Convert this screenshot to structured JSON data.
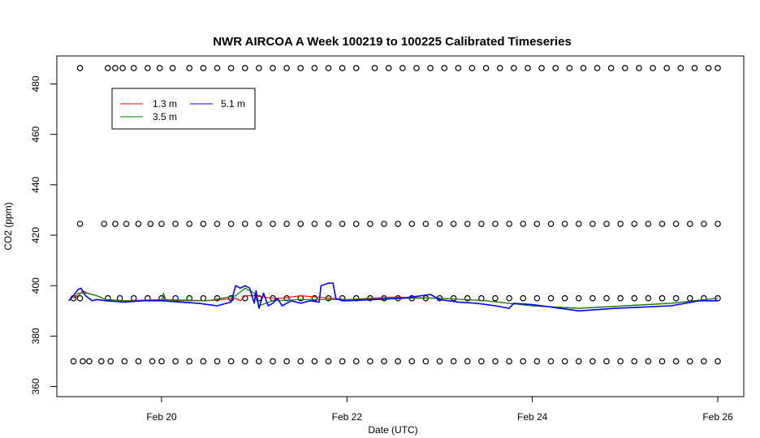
{
  "chart_data": {
    "type": "line",
    "title": "NWR AIRCOA A  Week 100219 to 100225  Calibrated Timeseries",
    "xlabel": "Date (UTC)",
    "ylabel": "CO2 (ppm)",
    "xlim": [
      19.0,
      26.0
    ],
    "ylim": [
      355,
      490
    ],
    "x_ticks": [
      20,
      22,
      24,
      26
    ],
    "x_tick_labels": [
      "Feb 20",
      "Feb 22",
      "Feb 24",
      "Feb 26"
    ],
    "y_ticks": [
      360,
      380,
      400,
      420,
      440,
      460,
      480
    ],
    "y_tick_labels": [
      "360",
      "380",
      "400",
      "420",
      "440",
      "460",
      "480"
    ],
    "grid": false,
    "legend": {
      "position": "top-left",
      "columns": 2
    },
    "series": [
      {
        "name": "1.3 m",
        "color": "#ff0000",
        "x": [
          19.05,
          19.1,
          19.15,
          19.2,
          19.3,
          19.4,
          19.6,
          20.0,
          20.5,
          20.8,
          20.85,
          20.9,
          21.0,
          21.2,
          21.3,
          21.5,
          22.0,
          22.5,
          23.0,
          23.5,
          24.0,
          24.5,
          25.0,
          25.5,
          26.0
        ],
        "values": [
          395,
          396,
          398,
          397,
          396,
          394.5,
          394,
          394.5,
          394,
          395,
          394,
          396,
          396,
          395,
          395,
          396,
          394.5,
          395.5,
          395,
          394,
          392,
          391,
          392,
          393,
          395
        ]
      },
      {
        "name": "3.5 m",
        "color": "#008000",
        "x": [
          19.05,
          19.1,
          19.2,
          19.3,
          19.4,
          19.6,
          20.0,
          20.02,
          20.05,
          20.5,
          20.8,
          20.9,
          21.0,
          21.05,
          21.2,
          21.5,
          22.0,
          22.5,
          23.0,
          23.5,
          24.0,
          24.5,
          25.0,
          25.5,
          26.0
        ],
        "values": [
          395,
          397,
          397,
          396,
          394.5,
          394,
          394,
          397,
          394,
          394,
          396,
          399,
          397,
          392,
          394,
          394.5,
          394.5,
          395,
          395,
          394,
          392,
          391,
          392,
          393,
          395
        ]
      },
      {
        "name": "5.1 m",
        "color": "#0000ff",
        "x": [
          19.0,
          19.05,
          19.1,
          19.13,
          19.18,
          19.25,
          19.3,
          19.4,
          19.6,
          19.8,
          20.0,
          20.2,
          20.4,
          20.6,
          20.75,
          20.8,
          20.85,
          20.9,
          20.95,
          21.0,
          21.02,
          21.05,
          21.1,
          21.15,
          21.2,
          21.25,
          21.3,
          21.4,
          21.5,
          21.6,
          21.7,
          21.72,
          21.8,
          21.85,
          21.88,
          21.95,
          22.0,
          22.3,
          22.6,
          22.9,
          23.0,
          23.2,
          23.4,
          23.6,
          23.75,
          23.8,
          24.0,
          24.2,
          24.4,
          24.5,
          24.7,
          24.9,
          25.2,
          25.5,
          25.8,
          26.0
        ],
        "values": [
          394,
          396,
          398.5,
          399,
          396,
          394,
          394.5,
          394,
          393.5,
          394,
          394,
          393.5,
          393,
          392,
          393.5,
          400,
          399,
          400,
          399,
          393,
          398,
          391,
          397,
          392,
          393,
          395,
          392,
          394,
          393,
          394,
          393.5,
          400,
          401,
          401,
          395,
          394,
          394,
          394.5,
          395,
          396.5,
          394.5,
          393.5,
          393,
          392,
          391,
          393,
          392.5,
          391.5,
          390.5,
          390,
          390.5,
          391,
          391.5,
          392,
          394,
          394
        ]
      }
    ],
    "point_series": [
      {
        "y": 486.3,
        "x": [
          19.12,
          19.42,
          19.5,
          19.58,
          19.7,
          19.85,
          19.98,
          20.12,
          20.3,
          20.45,
          20.6,
          20.75,
          20.9,
          21.05,
          21.2,
          21.35,
          21.5,
          21.65,
          21.8,
          21.95,
          22.1,
          22.3,
          22.45,
          22.6,
          22.75,
          22.9,
          23.05,
          23.2,
          23.35,
          23.5,
          23.65,
          23.8,
          23.95,
          24.1,
          24.25,
          24.4,
          24.55,
          24.7,
          24.85,
          25.0,
          25.15,
          25.3,
          25.45,
          25.6,
          25.75,
          25.9,
          26.0
        ]
      },
      {
        "y": 424.5,
        "x": [
          19.12,
          19.38,
          19.5,
          19.62,
          19.75,
          19.88,
          20.0,
          20.15,
          20.3,
          20.45,
          20.6,
          20.75,
          20.9,
          21.05,
          21.2,
          21.35,
          21.5,
          21.65,
          21.8,
          21.95,
          22.1,
          22.25,
          22.4,
          22.55,
          22.7,
          22.85,
          23.0,
          23.15,
          23.3,
          23.45,
          23.6,
          23.75,
          23.9,
          24.05,
          24.2,
          24.35,
          24.5,
          24.65,
          24.8,
          24.95,
          25.1,
          25.25,
          25.4,
          25.55,
          25.7,
          25.85,
          26.0
        ]
      },
      {
        "y": 395,
        "x": [
          19.05,
          19.12,
          19.42,
          19.55,
          19.7,
          19.85,
          20.0,
          20.15,
          20.3,
          20.45,
          20.6,
          20.75,
          20.9,
          21.05,
          21.2,
          21.35,
          21.5,
          21.65,
          21.8,
          21.95,
          22.1,
          22.25,
          22.4,
          22.55,
          22.7,
          22.85,
          23.0,
          23.15,
          23.3,
          23.45,
          23.6,
          23.75,
          23.9,
          24.05,
          24.2,
          24.35,
          24.5,
          24.65,
          24.8,
          24.95,
          25.1,
          25.25,
          25.4,
          25.55,
          25.7,
          25.85,
          26.0
        ]
      },
      {
        "y": 370,
        "x": [
          19.05,
          19.15,
          19.22,
          19.35,
          19.45,
          19.6,
          19.75,
          19.9,
          20.0,
          20.15,
          20.3,
          20.45,
          20.6,
          20.75,
          20.9,
          21.05,
          21.2,
          21.35,
          21.5,
          21.65,
          21.8,
          21.95,
          22.1,
          22.25,
          22.4,
          22.55,
          22.7,
          22.85,
          23.0,
          23.15,
          23.3,
          23.45,
          23.6,
          23.75,
          23.9,
          24.05,
          24.2,
          24.35,
          24.5,
          24.65,
          24.8,
          24.95,
          25.1,
          25.25,
          25.4,
          25.55,
          25.7,
          25.85,
          26.0
        ]
      }
    ]
  }
}
